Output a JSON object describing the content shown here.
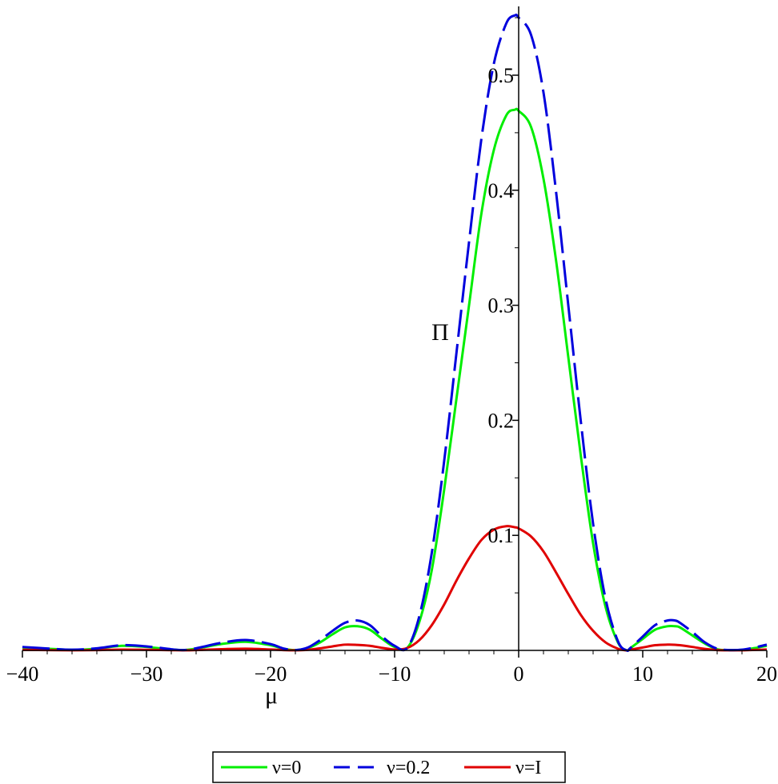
{
  "chart_data": {
    "type": "line",
    "title": "",
    "xlabel": "μ",
    "ylabel": "Π",
    "xlim": [
      -40,
      20
    ],
    "ylim": [
      0,
      0.55
    ],
    "x_ticks": [
      -40,
      -30,
      -20,
      -10,
      0,
      10,
      20
    ],
    "x_tick_labels": [
      "−40",
      "−30",
      "−20",
      "−10",
      "0",
      "10",
      "20"
    ],
    "y_ticks": [
      0.1,
      0.2,
      0.3,
      0.4,
      0.5
    ],
    "y_tick_labels": [
      "0.1",
      "0.2",
      "0.3",
      "0.4",
      "0.5"
    ],
    "grid": false,
    "legend_position": "bottom-center",
    "x": [
      -40,
      -38,
      -36,
      -34,
      -32,
      -30,
      -28,
      -27,
      -26,
      -24,
      -22,
      -20,
      -19,
      -18,
      -17,
      -16,
      -15,
      -14,
      -13,
      -12,
      -11,
      -10,
      -9,
      -8,
      -7,
      -6,
      -5,
      -4,
      -3,
      -2,
      -1,
      -0.3,
      0,
      1,
      2,
      3,
      4,
      5,
      6,
      7,
      8,
      8.7,
      9,
      10,
      11,
      12,
      12.6,
      13,
      14,
      15,
      16,
      17,
      18,
      19,
      20
    ],
    "series": [
      {
        "name": "ν=0",
        "color": "#00ee00",
        "dash": "solid",
        "values": [
          0.0025,
          0.0015,
          0.0005,
          0.0015,
          0.004,
          0.003,
          0.0008,
          0.0003,
          0.0015,
          0.0055,
          0.0075,
          0.0045,
          0.0015,
          0.0003,
          0.002,
          0.007,
          0.014,
          0.02,
          0.021,
          0.018,
          0.01,
          0.003,
          0.002,
          0.025,
          0.07,
          0.14,
          0.22,
          0.3,
          0.38,
          0.435,
          0.465,
          0.47,
          0.469,
          0.455,
          0.41,
          0.34,
          0.255,
          0.17,
          0.093,
          0.038,
          0.007,
          0.0,
          0.002,
          0.01,
          0.018,
          0.021,
          0.021,
          0.02,
          0.013,
          0.006,
          0.001,
          0.0003,
          0.0005,
          0.002,
          0.004
        ]
      },
      {
        "name": "ν=0.2",
        "color": "#0000dd",
        "dash": "long-dash",
        "values": [
          0.003,
          0.0017,
          0.0006,
          0.0018,
          0.0045,
          0.0035,
          0.001,
          0.0003,
          0.0018,
          0.0065,
          0.009,
          0.0055,
          0.0018,
          0.0003,
          0.0025,
          0.009,
          0.017,
          0.024,
          0.026,
          0.022,
          0.012,
          0.004,
          0.002,
          0.03,
          0.085,
          0.165,
          0.26,
          0.355,
          0.445,
          0.51,
          0.545,
          0.552,
          0.55,
          0.535,
          0.485,
          0.4,
          0.3,
          0.2,
          0.11,
          0.045,
          0.008,
          0.0,
          0.002,
          0.012,
          0.022,
          0.026,
          0.026,
          0.024,
          0.016,
          0.007,
          0.0015,
          0.0003,
          0.0006,
          0.0025,
          0.005
        ]
      },
      {
        "name": "ν=I",
        "color": "#e00000",
        "dash": "solid",
        "values": [
          0.0004,
          0.0003,
          0.0001,
          0.0003,
          0.0007,
          0.0005,
          0.0002,
          0.0001,
          0.0003,
          0.001,
          0.0015,
          0.0008,
          0.0003,
          0.0001,
          0.0005,
          0.0018,
          0.0035,
          0.005,
          0.0048,
          0.004,
          0.0022,
          0.0008,
          0.002,
          0.009,
          0.022,
          0.04,
          0.061,
          0.08,
          0.096,
          0.105,
          0.108,
          0.107,
          0.106,
          0.099,
          0.086,
          0.068,
          0.049,
          0.031,
          0.017,
          0.007,
          0.0015,
          0.0,
          0.0006,
          0.0025,
          0.0045,
          0.005,
          0.0049,
          0.0045,
          0.003,
          0.0013,
          0.0003,
          0.0001,
          0.0001,
          0.0004,
          0.0008
        ]
      }
    ]
  }
}
